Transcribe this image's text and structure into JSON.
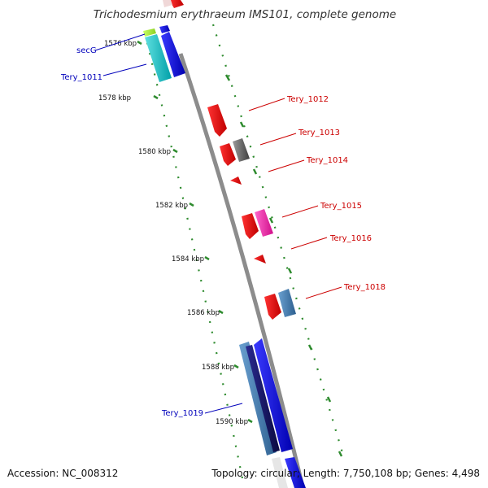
{
  "title": "Trichodesmium erythraeum IMS101, complete genome",
  "accession": "Accession: NC_008312",
  "summary": "Topology: circular; Length: 7,750,108 bp; Genes: 4,498",
  "colors": {
    "backbone": "#8c8c8c",
    "ticks": "#2e8b2e",
    "forward_label": "#0000bb",
    "reverse_label": "#cc0000"
  },
  "ticks": [
    "1576 kbp",
    "1578 kbp",
    "1580 kbp",
    "1582 kbp",
    "1584 kbp",
    "1586 kbp",
    "1588 kbp",
    "1590 kbp"
  ],
  "labels": {
    "secG": "secG",
    "tery_1011": "Tery_1011",
    "tery_1012": "Tery_1012",
    "tery_1013": "Tery_1013",
    "tery_1014": "Tery_1014",
    "tery_1015": "Tery_1015",
    "tery_1016": "Tery_1016",
    "tery_1018": "Tery_1018",
    "tery_1019": "Tery_1019"
  }
}
